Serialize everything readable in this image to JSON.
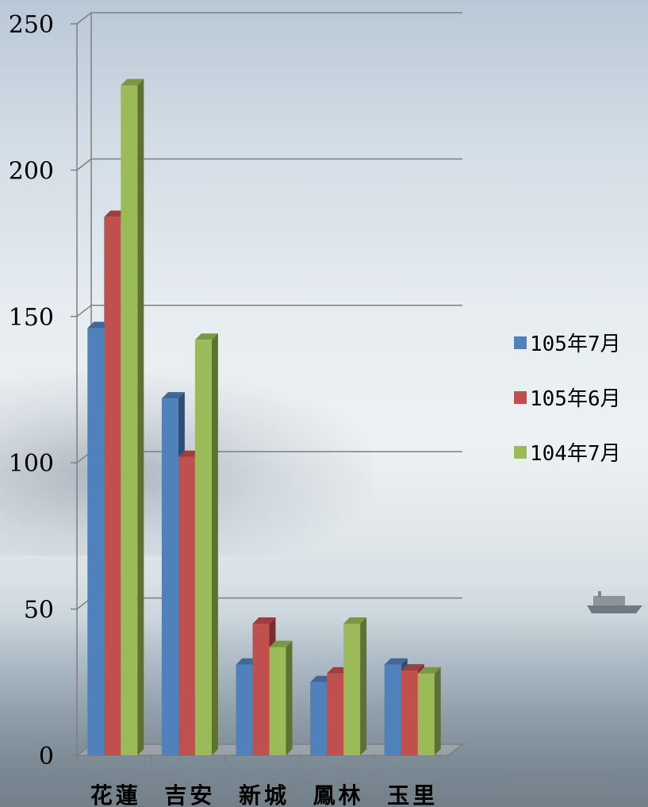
{
  "chart_data": {
    "type": "bar",
    "categories": [
      "花蓮",
      "吉安",
      "新城",
      "鳳林",
      "玉里"
    ],
    "series": [
      {
        "name": "105年7月",
        "color": "#4f81bd",
        "values": [
          146,
          122,
          31,
          25,
          31
        ]
      },
      {
        "name": "105年6月",
        "color": "#c0504d",
        "values": [
          184,
          102,
          45,
          28,
          29
        ]
      },
      {
        "name": "104年7月",
        "color": "#9bbb59",
        "values": [
          229,
          142,
          37,
          45,
          28
        ]
      }
    ],
    "ylim": [
      0,
      250
    ],
    "yticks": [
      0,
      50,
      100,
      150,
      200,
      250
    ],
    "grid": true,
    "legend_position": "right",
    "title": "",
    "xlabel": "",
    "ylabel": ""
  }
}
